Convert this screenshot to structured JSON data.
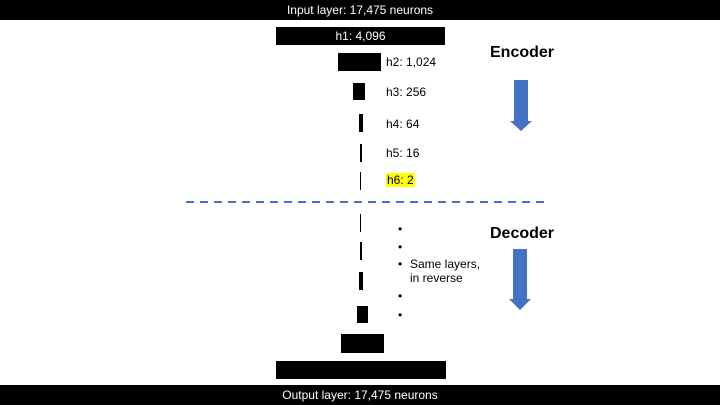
{
  "input_layer": "Input layer: 17,475 neurons",
  "output_layer": "Output layer: 17,475 neurons",
  "encoder": {
    "title": "Encoder",
    "layers": [
      {
        "label": "h1: 4,096"
      },
      {
        "label": "h2: 1,024"
      },
      {
        "label": "h3: 256"
      },
      {
        "label": "h4: 64"
      },
      {
        "label": "h5: 16"
      },
      {
        "label": "h6: 2",
        "highlight": "#ffff00"
      }
    ]
  },
  "decoder": {
    "title": "Decoder",
    "note_line1": "Same layers,",
    "note_line2": "in reverse"
  },
  "colors": {
    "arrow": "#4472c4",
    "divider": "#4472c4",
    "highlight": "#ffff00"
  }
}
